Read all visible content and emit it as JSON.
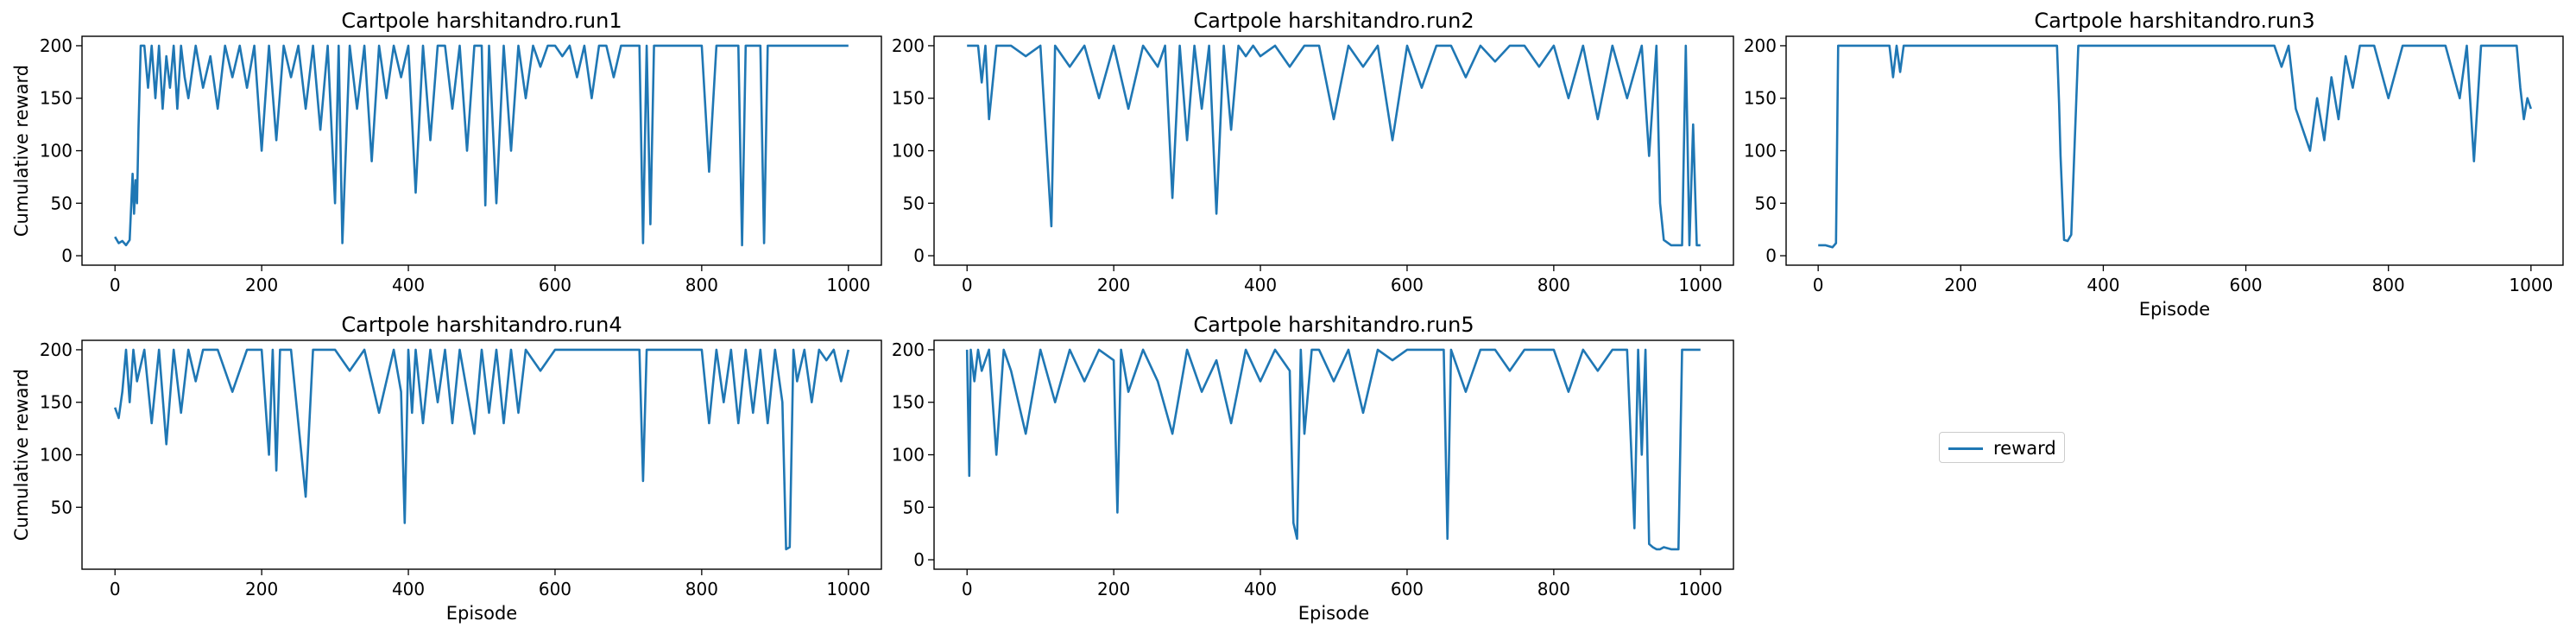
{
  "chart_data": [
    {
      "type": "line",
      "title": "Cartpole harshitandro.run1",
      "xlabel": "",
      "ylabel": "Cumulative reward",
      "xlim": [
        0,
        1000
      ],
      "ylim": [
        0,
        200
      ],
      "xticks": [
        0,
        200,
        400,
        600,
        800,
        1000
      ],
      "yticks": [
        0,
        50,
        100,
        150,
        200
      ],
      "grid": false,
      "series": [
        {
          "name": "reward",
          "color": "#1f77b4",
          "x": [
            0,
            5,
            10,
            15,
            20,
            24,
            26,
            28,
            30,
            32,
            35,
            40,
            45,
            50,
            55,
            60,
            65,
            70,
            75,
            80,
            85,
            90,
            95,
            100,
            110,
            120,
            130,
            140,
            150,
            160,
            170,
            180,
            190,
            200,
            210,
            220,
            230,
            240,
            250,
            260,
            270,
            280,
            290,
            300,
            305,
            310,
            320,
            330,
            340,
            350,
            360,
            370,
            380,
            390,
            400,
            410,
            420,
            430,
            440,
            450,
            460,
            470,
            480,
            490,
            500,
            505,
            510,
            520,
            530,
            540,
            550,
            560,
            570,
            580,
            590,
            600,
            610,
            620,
            630,
            640,
            650,
            660,
            670,
            680,
            690,
            700,
            715,
            720,
            725,
            730,
            735,
            740,
            750,
            770,
            790,
            800,
            810,
            820,
            830,
            840,
            850,
            855,
            860,
            870,
            880,
            885,
            890,
            900,
            920,
            940,
            960,
            980,
            1000
          ],
          "y": [
            18,
            12,
            14,
            10,
            15,
            78,
            40,
            72,
            50,
            120,
            200,
            200,
            160,
            200,
            150,
            200,
            140,
            190,
            160,
            200,
            140,
            200,
            170,
            150,
            200,
            160,
            190,
            140,
            200,
            170,
            200,
            160,
            200,
            100,
            200,
            110,
            200,
            170,
            200,
            140,
            200,
            120,
            200,
            50,
            200,
            12,
            200,
            140,
            200,
            90,
            200,
            150,
            200,
            170,
            200,
            60,
            200,
            110,
            200,
            200,
            140,
            200,
            100,
            200,
            200,
            48,
            200,
            50,
            200,
            100,
            200,
            150,
            200,
            180,
            200,
            200,
            190,
            200,
            170,
            200,
            150,
            200,
            200,
            170,
            200,
            200,
            200,
            12,
            200,
            30,
            200,
            200,
            200,
            200,
            200,
            200,
            80,
            200,
            200,
            200,
            200,
            10,
            200,
            200,
            200,
            12,
            200,
            200,
            200,
            200,
            200,
            200,
            200
          ]
        }
      ]
    },
    {
      "type": "line",
      "title": "Cartpole harshitandro.run2",
      "xlabel": "",
      "ylabel": "",
      "xlim": [
        0,
        1000
      ],
      "ylim": [
        0,
        200
      ],
      "xticks": [
        0,
        200,
        400,
        600,
        800,
        1000
      ],
      "yticks": [
        0,
        50,
        100,
        150,
        200
      ],
      "grid": false,
      "series": [
        {
          "name": "reward",
          "color": "#1f77b4",
          "x": [
            0,
            15,
            20,
            25,
            30,
            40,
            60,
            80,
            100,
            115,
            120,
            140,
            160,
            180,
            200,
            220,
            240,
            260,
            270,
            280,
            290,
            300,
            310,
            320,
            330,
            340,
            350,
            360,
            370,
            380,
            390,
            400,
            420,
            440,
            460,
            480,
            500,
            520,
            540,
            560,
            580,
            600,
            620,
            640,
            660,
            680,
            700,
            720,
            740,
            760,
            780,
            800,
            820,
            840,
            860,
            880,
            900,
            920,
            930,
            940,
            945,
            950,
            960,
            970,
            975,
            980,
            985,
            990,
            995,
            1000
          ],
          "y": [
            200,
            200,
            165,
            200,
            130,
            200,
            200,
            190,
            200,
            28,
            200,
            180,
            200,
            150,
            200,
            140,
            200,
            180,
            200,
            55,
            200,
            110,
            200,
            140,
            200,
            40,
            200,
            120,
            200,
            190,
            200,
            190,
            200,
            180,
            200,
            200,
            130,
            200,
            180,
            200,
            110,
            200,
            160,
            200,
            200,
            170,
            200,
            185,
            200,
            200,
            180,
            200,
            150,
            200,
            130,
            200,
            150,
            200,
            95,
            200,
            50,
            15,
            10,
            10,
            10,
            200,
            10,
            125,
            10,
            10
          ]
        }
      ]
    },
    {
      "type": "line",
      "title": "Cartpole harshitandro.run3",
      "xlabel": "Episode",
      "ylabel": "",
      "xlim": [
        0,
        1000
      ],
      "ylim": [
        0,
        200
      ],
      "xticks": [
        0,
        200,
        400,
        600,
        800,
        1000
      ],
      "yticks": [
        0,
        50,
        100,
        150,
        200
      ],
      "grid": false,
      "series": [
        {
          "name": "reward",
          "color": "#1f77b4",
          "x": [
            0,
            10,
            20,
            25,
            28,
            30,
            50,
            80,
            100,
            105,
            110,
            115,
            120,
            130,
            200,
            300,
            335,
            338,
            340,
            345,
            350,
            355,
            360,
            365,
            370,
            400,
            500,
            600,
            640,
            650,
            660,
            670,
            680,
            690,
            700,
            710,
            720,
            730,
            740,
            750,
            760,
            780,
            800,
            820,
            840,
            860,
            880,
            900,
            910,
            920,
            930,
            940,
            960,
            980,
            985,
            990,
            995,
            1000
          ],
          "y": [
            10,
            10,
            8,
            12,
            200,
            200,
            200,
            200,
            200,
            170,
            200,
            175,
            200,
            200,
            200,
            200,
            200,
            145,
            95,
            15,
            14,
            20,
            110,
            200,
            200,
            200,
            200,
            200,
            200,
            180,
            200,
            140,
            120,
            100,
            150,
            110,
            170,
            130,
            190,
            160,
            200,
            200,
            150,
            200,
            200,
            200,
            200,
            150,
            200,
            90,
            200,
            200,
            200,
            200,
            160,
            130,
            150,
            140
          ]
        }
      ]
    },
    {
      "type": "line",
      "title": "Cartpole harshitandro.run4",
      "xlabel": "Episode",
      "ylabel": "Cumulative reward",
      "xlim": [
        0,
        1000
      ],
      "ylim": [
        0,
        200
      ],
      "xticks": [
        0,
        200,
        400,
        600,
        800,
        1000
      ],
      "yticks": [
        50,
        100,
        150,
        200
      ],
      "grid": false,
      "series": [
        {
          "name": "reward",
          "color": "#1f77b4",
          "x": [
            0,
            5,
            10,
            15,
            20,
            25,
            30,
            40,
            50,
            60,
            70,
            80,
            90,
            100,
            110,
            120,
            140,
            160,
            180,
            200,
            210,
            215,
            220,
            225,
            230,
            240,
            260,
            270,
            280,
            300,
            320,
            340,
            360,
            380,
            390,
            395,
            400,
            405,
            410,
            420,
            430,
            440,
            450,
            460,
            470,
            480,
            490,
            500,
            510,
            520,
            530,
            540,
            550,
            560,
            580,
            600,
            620,
            640,
            660,
            680,
            700,
            715,
            720,
            725,
            730,
            760,
            800,
            810,
            820,
            830,
            840,
            850,
            860,
            870,
            880,
            890,
            900,
            910,
            915,
            920,
            925,
            930,
            940,
            950,
            960,
            970,
            980,
            990,
            1000
          ],
          "y": [
            145,
            135,
            160,
            200,
            150,
            200,
            170,
            200,
            130,
            200,
            110,
            200,
            140,
            200,
            170,
            200,
            200,
            160,
            200,
            200,
            100,
            200,
            85,
            200,
            200,
            200,
            60,
            200,
            200,
            200,
            180,
            200,
            140,
            200,
            160,
            35,
            200,
            140,
            200,
            130,
            200,
            150,
            200,
            130,
            200,
            160,
            120,
            200,
            140,
            200,
            130,
            200,
            140,
            200,
            180,
            200,
            200,
            200,
            200,
            200,
            200,
            200,
            75,
            200,
            200,
            200,
            200,
            130,
            200,
            150,
            200,
            130,
            200,
            140,
            200,
            130,
            200,
            150,
            10,
            12,
            200,
            170,
            200,
            150,
            200,
            190,
            200,
            170,
            200
          ]
        }
      ]
    },
    {
      "type": "line",
      "title": "Cartpole harshitandro.run5",
      "xlabel": "Episode",
      "ylabel": "",
      "xlim": [
        0,
        1000
      ],
      "ylim": [
        0,
        200
      ],
      "xticks": [
        0,
        200,
        400,
        600,
        800,
        1000
      ],
      "yticks": [
        0,
        50,
        100,
        150,
        200
      ],
      "grid": false,
      "series": [
        {
          "name": "reward",
          "color": "#1f77b4",
          "x": [
            0,
            3,
            5,
            10,
            15,
            20,
            30,
            40,
            50,
            60,
            80,
            100,
            120,
            140,
            160,
            180,
            200,
            205,
            210,
            220,
            240,
            260,
            280,
            300,
            320,
            340,
            360,
            380,
            400,
            420,
            440,
            445,
            450,
            455,
            460,
            470,
            480,
            500,
            520,
            540,
            560,
            580,
            600,
            620,
            640,
            650,
            655,
            660,
            680,
            700,
            720,
            740,
            760,
            780,
            800,
            820,
            840,
            860,
            880,
            900,
            910,
            915,
            920,
            925,
            930,
            935,
            940,
            945,
            950,
            960,
            970,
            975,
            980,
            985,
            1000
          ],
          "y": [
            200,
            80,
            200,
            170,
            200,
            180,
            200,
            100,
            200,
            180,
            120,
            200,
            150,
            200,
            170,
            200,
            190,
            45,
            200,
            160,
            200,
            170,
            120,
            200,
            160,
            190,
            130,
            200,
            170,
            200,
            180,
            35,
            20,
            200,
            120,
            200,
            200,
            170,
            200,
            140,
            200,
            190,
            200,
            200,
            200,
            200,
            20,
            200,
            160,
            200,
            200,
            180,
            200,
            200,
            200,
            160,
            200,
            180,
            200,
            200,
            30,
            200,
            100,
            200,
            15,
            12,
            10,
            10,
            12,
            10,
            10,
            200,
            200,
            200,
            200
          ]
        }
      ]
    }
  ],
  "legend": {
    "label": "reward",
    "color": "#1f77b4",
    "placement": "center-right"
  }
}
